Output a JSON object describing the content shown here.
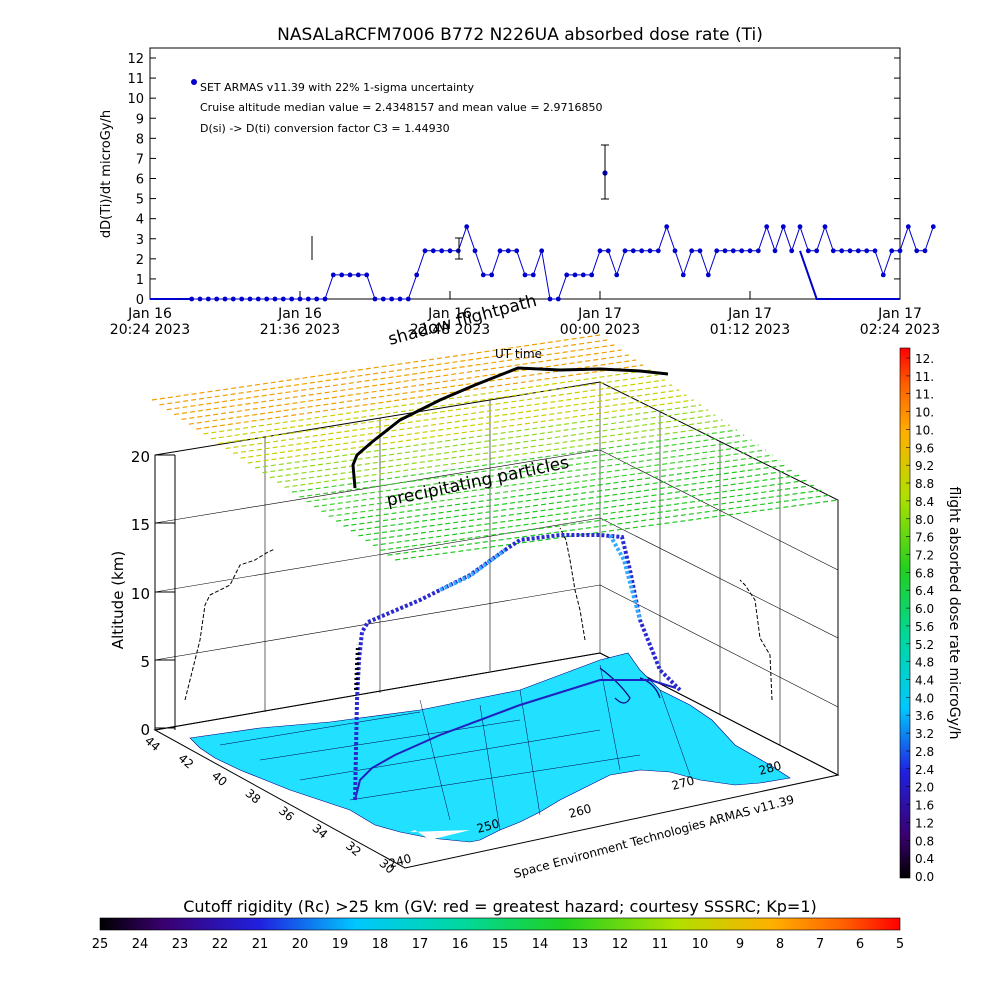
{
  "page": {
    "title": "NASALaRCFM7006   B772 N226UA absorbed dose rate (Ti)",
    "footer_credit": "Space Environment Technologies ARMAS v11.39"
  },
  "timeseries": {
    "ylabel": "dD(Ti)/dt microGy/h",
    "y_ticks": [
      "0",
      "1",
      "2",
      "3",
      "4",
      "5",
      "6",
      "7",
      "8",
      "9",
      "10",
      "11",
      "12"
    ],
    "x_ticks": [
      {
        "line1": "Jan 16",
        "line2": "20:24 2023"
      },
      {
        "line1": "Jan 16",
        "line2": "21:36 2023"
      },
      {
        "line1": "Jan 16",
        "line2": "22:48 2023"
      },
      {
        "line1": "Jan 17",
        "line2": "00:00 2023"
      },
      {
        "line1": "Jan 17",
        "line2": "01:12 2023"
      },
      {
        "line1": "Jan 17",
        "line2": "02:24 2023"
      }
    ],
    "legend": "SET ARMAS v11.39 with 22% 1-sigma uncertainty",
    "annot1": "Cruise altitude median value = 2.4348157 and mean value = 2.9716850",
    "annot2": "D(si) -> D(ti) conversion factor C3 = 1.44930",
    "series_color": "#0000cc"
  },
  "chart_data": [
    {
      "type": "line",
      "title": "NASALaRCFM7006   B772 N226UA absorbed dose rate (Ti)",
      "ylabel": "dD(Ti)/dt microGy/h",
      "ylim": [
        0,
        12
      ],
      "x_unit": "minutes after Jan 16 20:24 UT",
      "xlim": [
        0,
        360
      ],
      "series": [
        {
          "name": "SET ARMAS v11.39 with 22% 1-sigma uncertainty",
          "x": [
            0,
            4,
            8,
            12,
            16,
            20,
            24,
            28,
            32,
            36,
            40,
            44,
            48,
            52,
            56,
            60,
            64,
            68,
            72,
            76,
            80,
            84,
            88,
            92,
            96,
            100,
            104,
            108,
            112,
            116,
            120,
            124,
            128,
            132,
            136,
            140,
            144,
            148,
            152,
            156,
            160,
            164,
            168,
            172,
            176,
            180,
            184,
            188,
            192,
            196,
            200,
            204,
            208,
            212,
            216,
            220,
            224,
            228,
            232,
            236,
            240,
            244,
            248,
            252,
            256,
            260,
            264,
            268,
            272,
            276,
            280,
            284,
            288,
            292
          ],
          "values": [
            0,
            0,
            0,
            0,
            0,
            0,
            0,
            0,
            0,
            0,
            0,
            0,
            0,
            0,
            0,
            0,
            0,
            1.2,
            1.2,
            1.2,
            1.2,
            1.2,
            0,
            0,
            0,
            0,
            0,
            1.2,
            2.4,
            2.4,
            2.4,
            2.4,
            2.4,
            3.6,
            2.4,
            1.2,
            1.2,
            2.4,
            2.4,
            2.4,
            1.2,
            1.2,
            2.4,
            0,
            0,
            1.2,
            1.2,
            1.2,
            1.2,
            2.4,
            2.4,
            1.2,
            2.4,
            2.4,
            2.4,
            2.4,
            2.4,
            3.6,
            2.4,
            1.2,
            2.4,
            2.4,
            1.2,
            2.4,
            2.4,
            2.4,
            2.4,
            2.4,
            2.4,
            3.6,
            2.4,
            3.6,
            2.4,
            3.6
          ],
          "x2": [
            296,
            300,
            304,
            308,
            312,
            316,
            320,
            324,
            328,
            332,
            336,
            340,
            344,
            348,
            352,
            356
          ],
          "values2": [
            2.4,
            2.4,
            3.6,
            2.4,
            2.4,
            2.4,
            2.4,
            2.4,
            2.4,
            1.2,
            2.4,
            2.4,
            3.6,
            2.4,
            2.4,
            3.6
          ]
        }
      ]
    },
    {
      "type": "scatter",
      "title": "",
      "zlabel": "Altitude (km)",
      "zlim": [
        0,
        20
      ],
      "z_ticks": [
        "0",
        "5",
        "10",
        "15",
        "20"
      ],
      "lat_ticks": [
        "44",
        "42",
        "40",
        "38",
        "36",
        "34",
        "32",
        "30"
      ],
      "lon_ticks": [
        "240",
        "250",
        "260",
        "270",
        "280"
      ],
      "labels": [
        "shadow flightpath",
        "UT time",
        "precipitating particles"
      ],
      "colorbar_right": {
        "label": "flight absorbed dose rate microGy/h",
        "ticks": [
          "12.",
          "11.",
          "11.",
          "10.",
          "10.",
          "9.6",
          "9.2",
          "8.8",
          "8.4",
          "8.0",
          "7.6",
          "7.2",
          "6.8",
          "6.4",
          "6.0",
          "5.6",
          "5.2",
          "4.8",
          "4.4",
          "4.0",
          "3.6",
          "3.2",
          "2.8",
          "2.4",
          "2.0",
          "1.6",
          "1.2",
          "0.8",
          "0.4",
          "0.0"
        ]
      },
      "colorbar_bottom": {
        "label": "Cutoff rigidity (Rc) >25 km (GV: red = greatest hazard; courtesy SSSRC; Kp=1)",
        "ticks": [
          "25",
          "24",
          "23",
          "22",
          "21",
          "20",
          "19",
          "18",
          "17",
          "16",
          "15",
          "14",
          "13",
          "12",
          "11",
          "10",
          "9",
          "8",
          "7",
          "6",
          "5"
        ]
      }
    }
  ]
}
